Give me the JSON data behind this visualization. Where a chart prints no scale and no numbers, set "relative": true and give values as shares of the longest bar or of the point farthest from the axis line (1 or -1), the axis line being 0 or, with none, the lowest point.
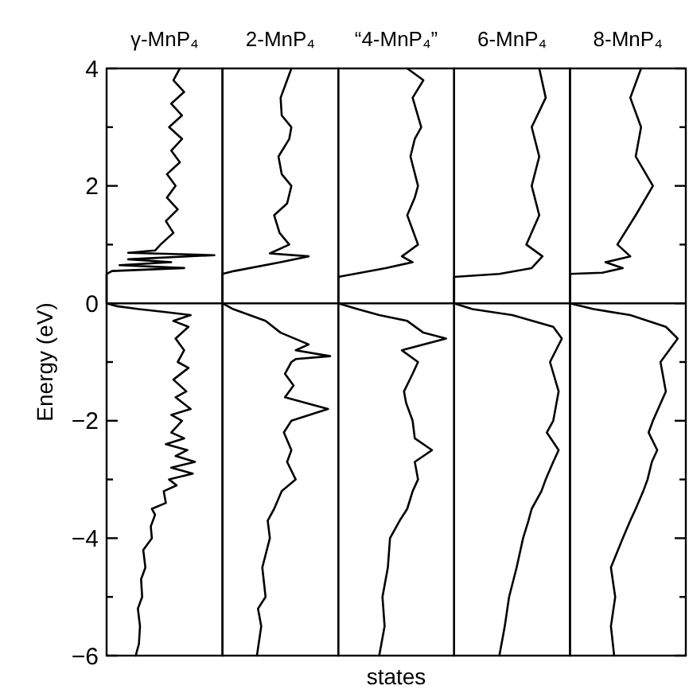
{
  "chart_data": [
    {
      "type": "line",
      "orientation": "horizontal",
      "relative": true,
      "title": "γ-MnP₄",
      "ylabel": "Energy (eV)",
      "ylim": [
        -6,
        4
      ],
      "yticks": [
        {
          "value": -6,
          "label": "−6"
        },
        {
          "value": -5,
          "label": null
        },
        {
          "value": -4,
          "label": "−4"
        },
        {
          "value": -3,
          "label": null
        },
        {
          "value": -2,
          "label": "−2"
        },
        {
          "value": -1,
          "label": null
        },
        0,
        {
          "value": 1,
          "label": null
        },
        2,
        {
          "value": 3,
          "label": null
        },
        4
      ],
      "tick_labels": "y",
      "ref_lines": [
        {
          "axis": "y",
          "value": 0
        }
      ],
      "series": [
        {
          "color": "#000000",
          "values": [
            0.27,
            0.3,
            0.31,
            0.29,
            0.33,
            0.32,
            0.36,
            0.34,
            0.42,
            0.41,
            0.45,
            0.42,
            0.55,
            0.53,
            0.65,
            0.58,
            0.8,
            0.6,
            0.82,
            0.64,
            0.75,
            0.55,
            0.72,
            0.6,
            0.7,
            0.6,
            0.78,
            0.64,
            0.74,
            0.62,
            0.76,
            0.66,
            0.72,
            0.64,
            0.76,
            0.62,
            0.78,
            0.55,
            0.3,
            0.1,
            0,
            0,
            0.05,
            0.72,
            0.12,
            0.6,
            0.2,
            1.0,
            0.2,
            0.45,
            0.5,
            0.62,
            0.55,
            0.66,
            0.56,
            0.64,
            0.56,
            0.68,
            0.6,
            0.7,
            0.58,
            0.7,
            0.6,
            0.72,
            0.62,
            0.68
          ],
          "x": [
            -6,
            -5.8,
            -5.5,
            -5.2,
            -5,
            -4.7,
            -4.5,
            -4.2,
            -4,
            -3.8,
            -3.6,
            -3.5,
            -3.4,
            -3.2,
            -3.1,
            -3,
            -2.9,
            -2.8,
            -2.7,
            -2.6,
            -2.5,
            -2.4,
            -2.3,
            -2.2,
            -2,
            -1.9,
            -1.8,
            -1.6,
            -1.5,
            -1.3,
            -1.1,
            -1,
            -0.8,
            -0.6,
            -0.4,
            -0.3,
            -0.2,
            -0.15,
            -0.1,
            -0.05,
            0,
            0.5,
            0.55,
            0.6,
            0.65,
            0.7,
            0.75,
            0.82,
            0.86,
            0.9,
            1,
            1.2,
            1.4,
            1.6,
            1.8,
            2,
            2.2,
            2.4,
            2.6,
            2.8,
            3,
            3.2,
            3.4,
            3.6,
            3.8,
            4
          ]
        }
      ]
    },
    {
      "type": "line",
      "orientation": "horizontal",
      "relative": true,
      "title": "2-MnP₄",
      "ylim": [
        -6,
        4
      ],
      "tick_labels": false,
      "ref_lines": [
        {
          "axis": "y",
          "value": 0
        }
      ],
      "series": [
        {
          "color": "#000000",
          "values": [
            0.32,
            0.36,
            0.33,
            0.4,
            0.37,
            0.44,
            0.42,
            0.48,
            0.55,
            0.68,
            0.6,
            0.64,
            0.57,
            0.64,
            0.98,
            0.58,
            0.66,
            0.58,
            0.64,
            0.68,
            1,
            0.68,
            0.8,
            0.54,
            0.4,
            0.1,
            0,
            0,
            0.11,
            0.54,
            0.8,
            0.44,
            0.62,
            0.53,
            0.48,
            0.6,
            0.64,
            0.55,
            0.52,
            0.62,
            0.64,
            0.55,
            0.54,
            0.6,
            0.64
          ],
          "x": [
            -6,
            -5.5,
            -5.2,
            -5,
            -4.5,
            -4,
            -3.7,
            -3.5,
            -3.2,
            -3,
            -2.7,
            -2.5,
            -2.2,
            -2,
            -1.8,
            -1.6,
            -1.4,
            -1.2,
            -1,
            -0.95,
            -0.9,
            -0.8,
            -0.7,
            -0.5,
            -0.3,
            -0.1,
            0,
            0.5,
            0.55,
            0.7,
            0.8,
            0.85,
            1,
            1.2,
            1.5,
            1.7,
            2,
            2.2,
            2.5,
            2.8,
            3,
            3.2,
            3.5,
            3.8,
            4
          ]
        }
      ]
    },
    {
      "type": "line",
      "orientation": "horizontal",
      "relative": true,
      "title": "“4-MnP₄”",
      "xlabel": "states",
      "ylim": [
        -6,
        4
      ],
      "tick_labels": false,
      "ref_lines": [
        {
          "axis": "y",
          "value": 0
        }
      ],
      "series": [
        {
          "color": "#000000",
          "values": [
            0.38,
            0.43,
            0.41,
            0.46,
            0.48,
            0.57,
            0.64,
            0.69,
            0.74,
            0.71,
            0.87,
            0.71,
            0.69,
            0.63,
            0.61,
            0.69,
            0.74,
            0.59,
            1,
            0.79,
            0.64,
            0.38,
            0.18,
            0,
            0,
            0.44,
            0.69,
            0.59,
            0.74,
            0.64,
            0.71,
            0.74,
            0.67,
            0.71,
            0.77,
            0.69,
            0.79,
            0.64
          ],
          "x": [
            -6,
            -5.5,
            -5,
            -4.5,
            -4,
            -3.7,
            -3.5,
            -3.2,
            -3,
            -2.7,
            -2.5,
            -2.3,
            -2,
            -1.7,
            -1.5,
            -1.2,
            -1,
            -0.8,
            -0.6,
            -0.5,
            -0.3,
            -0.2,
            -0.1,
            0,
            0.45,
            0.6,
            0.7,
            0.8,
            1,
            1.5,
            1.8,
            2,
            2.5,
            2.8,
            3,
            3.5,
            3.8,
            4
          ]
        }
      ]
    },
    {
      "type": "line",
      "orientation": "horizontal",
      "relative": true,
      "title": "6-MnP₄",
      "ylim": [
        -6,
        4
      ],
      "tick_labels": false,
      "ref_lines": [
        {
          "axis": "y",
          "value": 0
        }
      ],
      "series": [
        {
          "color": "#000000",
          "values": [
            0.42,
            0.47,
            0.51,
            0.58,
            0.64,
            0.69,
            0.72,
            0.81,
            0.85,
            0.92,
            0.97,
            0.86,
            0.92,
            0.97,
            0.89,
            1,
            0.92,
            0.54,
            0.17,
            0,
            0,
            0.42,
            0.72,
            0.82,
            0.67,
            0.79,
            0.72,
            0.79,
            0.72,
            0.85,
            0.79
          ],
          "x": [
            -6,
            -5.5,
            -5,
            -4.5,
            -4,
            -3.7,
            -3.5,
            -3.2,
            -3,
            -2.7,
            -2.5,
            -2.2,
            -2,
            -1.5,
            -1,
            -0.6,
            -0.4,
            -0.2,
            -0.1,
            0,
            0.45,
            0.5,
            0.6,
            0.8,
            1,
            1.5,
            2,
            2.5,
            3,
            3.5,
            4
          ]
        }
      ]
    },
    {
      "type": "line",
      "orientation": "horizontal",
      "relative": true,
      "title": "8-MnP₄",
      "ylim": [
        -6,
        4
      ],
      "yticks": [
        -6,
        -5,
        -4,
        -3,
        -2,
        -1,
        0,
        1,
        2,
        3,
        4
      ],
      "tick_labels": false,
      "ref_lines": [
        {
          "axis": "y",
          "value": 0
        }
      ],
      "series": [
        {
          "color": "#000000",
          "values": [
            0.41,
            0.38,
            0.42,
            0.38,
            0.49,
            0.56,
            0.61,
            0.68,
            0.72,
            0.76,
            0.81,
            0.73,
            0.77,
            0.89,
            0.84,
            1,
            0.89,
            0.56,
            0.22,
            0,
            0,
            0.3,
            0.49,
            0.33,
            0.56,
            0.44,
            0.61,
            0.77,
            0.61,
            0.66,
            0.56,
            0.66
          ],
          "x": [
            -6,
            -5.5,
            -5,
            -4.5,
            -4,
            -3.7,
            -3.5,
            -3.2,
            -3,
            -2.7,
            -2.5,
            -2.2,
            -2,
            -1.5,
            -1,
            -0.6,
            -0.4,
            -0.2,
            -0.1,
            0,
            0.5,
            0.52,
            0.6,
            0.7,
            0.8,
            1,
            1.5,
            2,
            2.5,
            3,
            3.5,
            4
          ]
        }
      ]
    }
  ]
}
